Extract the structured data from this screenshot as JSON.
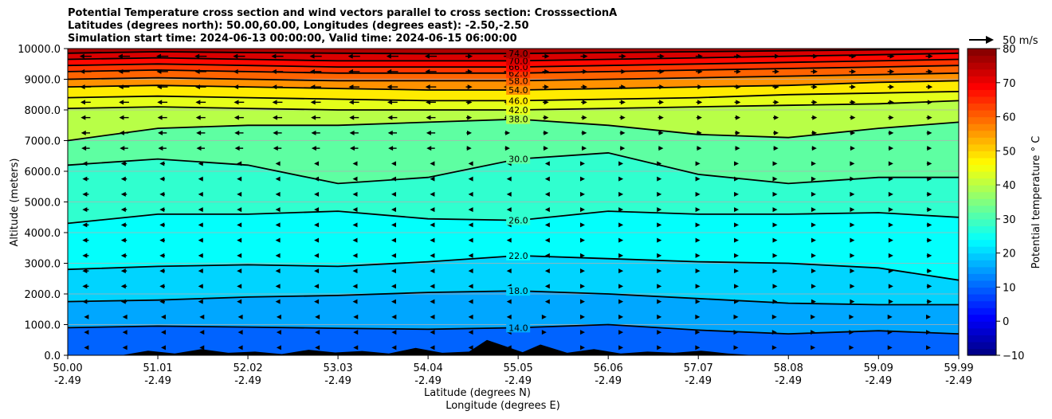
{
  "chart_data": {
    "type": "heatmap",
    "title_lines": [
      "Potential Temperature cross section and wind vectors parallel to cross section: CrosssectionA",
      "Latitudes (degrees north): 50.00,60.00, Longitudes (degrees east): -2.50,-2.50",
      "Simulation start time: 2024-06-13 00:00:00, Valid time: 2024-06-15 06:00:00"
    ],
    "xlabel_lat": "Latitude (degrees N)",
    "xlabel_lon": "Longitude (degrees E)",
    "ylabel": "Altitude (meters)",
    "x_ticks_lat": [
      "50.00",
      "51.01",
      "52.02",
      "53.03",
      "54.04",
      "55.05",
      "56.06",
      "57.07",
      "58.08",
      "59.09",
      "59.99"
    ],
    "x_ticks_lon": [
      "-2.49",
      "-2.49",
      "-2.49",
      "-2.49",
      "-2.49",
      "-2.49",
      "-2.49",
      "-2.49",
      "-2.49",
      "-2.49",
      "-2.49"
    ],
    "x_tick_values": [
      50.0,
      51.01,
      52.02,
      53.03,
      54.04,
      55.05,
      56.06,
      57.07,
      58.08,
      59.09,
      59.99
    ],
    "xlim": [
      50.0,
      59.99
    ],
    "y_ticks": [
      "0.0",
      "1000.0",
      "2000.0",
      "3000.0",
      "4000.0",
      "5000.0",
      "6000.0",
      "7000.0",
      "8000.0",
      "9000.0",
      "10000.0"
    ],
    "ylim": [
      0,
      10000
    ],
    "grid": "horizontal",
    "colorbar": {
      "label": "Potential temperature ° C",
      "range": [
        -10,
        80
      ],
      "ticks": [
        "−10",
        "0",
        "10",
        "20",
        "30",
        "40",
        "50",
        "60",
        "70",
        "80"
      ],
      "colormap": "jet"
    },
    "quiver_key": {
      "label": "50 m/s",
      "position": "top-right"
    },
    "contours": [
      {
        "level": "14.0",
        "z": [
          900,
          950,
          920,
          880,
          850,
          900,
          1000,
          820,
          700,
          800,
          700
        ]
      },
      {
        "level": "18.0",
        "z": [
          1750,
          1800,
          1900,
          1950,
          2050,
          2100,
          2000,
          1850,
          1700,
          1650,
          1650
        ]
      },
      {
        "level": "22.0",
        "z": [
          2800,
          2900,
          2950,
          2900,
          3050,
          3250,
          3150,
          3050,
          3000,
          2850,
          2450
        ]
      },
      {
        "level": "26.0",
        "z": [
          4300,
          4600,
          4600,
          4700,
          4450,
          4400,
          4700,
          4600,
          4600,
          4650,
          4500
        ]
      },
      {
        "level": "30.0",
        "z": [
          6200,
          6400,
          6200,
          5600,
          5800,
          6400,
          6600,
          5900,
          5600,
          5800,
          5800
        ]
      },
      {
        "level": "38.0",
        "z": [
          7000,
          7400,
          7500,
          7500,
          7600,
          7700,
          7500,
          7200,
          7100,
          7400,
          7600
        ]
      },
      {
        "level": "42.0",
        "z": [
          8050,
          8100,
          8050,
          8000,
          8000,
          8000,
          8050,
          8100,
          8150,
          8200,
          8300
        ]
      },
      {
        "level": "46.0",
        "z": [
          8400,
          8450,
          8400,
          8350,
          8300,
          8300,
          8350,
          8400,
          8500,
          8550,
          8600
        ]
      },
      {
        "level": "54.0",
        "z": [
          8750,
          8800,
          8750,
          8700,
          8650,
          8650,
          8700,
          8750,
          8800,
          8900,
          8950
        ]
      },
      {
        "level": "58.0",
        "z": [
          9000,
          9050,
          9000,
          8950,
          8950,
          8950,
          9000,
          9050,
          9100,
          9150,
          9200
        ]
      },
      {
        "level": "62.0",
        "z": [
          9250,
          9300,
          9250,
          9200,
          9200,
          9200,
          9250,
          9300,
          9350,
          9400,
          9450
        ]
      },
      {
        "level": "66.0",
        "z": [
          9450,
          9500,
          9450,
          9400,
          9400,
          9400,
          9450,
          9500,
          9550,
          9600,
          9650
        ]
      },
      {
        "level": "70.0",
        "z": [
          9650,
          9700,
          9650,
          9600,
          9600,
          9600,
          9650,
          9700,
          9750,
          9800,
          9850
        ]
      },
      {
        "level": "74.0",
        "z": [
          9850,
          9900,
          9870,
          9850,
          9830,
          9840,
          9870,
          9900,
          9930,
          9960,
          9990
        ]
      }
    ]
  }
}
